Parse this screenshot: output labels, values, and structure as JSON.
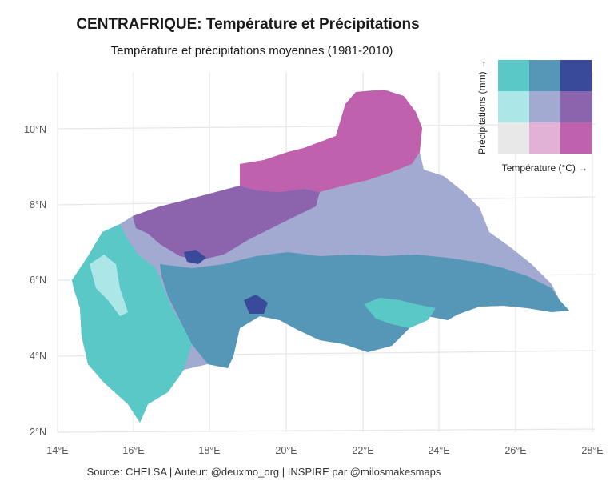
{
  "title": "CENTRAFRIQUE: Température et Précipitations",
  "subtitle": "Température et précipitations moyennes (1981-2010)",
  "caption": "Source: CHELSA | Auteur: @deuxmo_org | INSPIRE par @milosmakesmaps",
  "axes": {
    "x_ticks": [
      "14°E",
      "16°E",
      "18°E",
      "20°E",
      "22°E",
      "24°E",
      "26°E",
      "28°E"
    ],
    "y_ticks": [
      "2°N",
      "4°N",
      "6°N",
      "8°N",
      "10°N"
    ]
  },
  "legend": {
    "x_label": "Température (°C) →",
    "y_label": "Précipitations (mm) →",
    "grid_colors": [
      [
        "#5bc8c8",
        "#5697b8",
        "#3a4a9a"
      ],
      [
        "#ade6e6",
        "#a3aad2",
        "#8c63ad"
      ],
      [
        "#e8e8e8",
        "#e1b1d6",
        "#c061ae"
      ]
    ]
  },
  "colors": {
    "north_magenta": "#c061ae",
    "north_purple": "#8c63ad",
    "central_lavender": "#a3aad2",
    "south_blue": "#5697b8",
    "southwest_teal": "#5bc8c8",
    "light_teal": "#ade6e6",
    "dark_blue": "#3a4a9a"
  }
}
